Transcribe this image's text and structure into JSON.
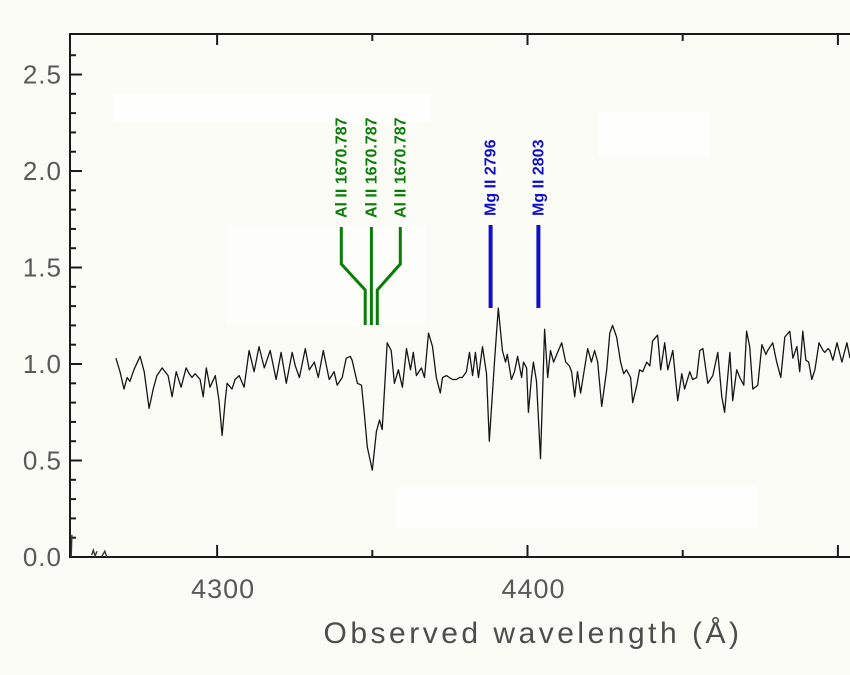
{
  "figure": {
    "kind": "astronomical spectrum plot",
    "background_color": "#fcfcf6",
    "axis_color": "#1a1a1a",
    "tick_label_color": "#595959",
    "title_color": "#4d4d4d"
  },
  "chart_data": {
    "type": "line",
    "title": "",
    "xlabel": "Observed wavelength (Å)",
    "ylabel": "",
    "xlim": [
      4252.6,
      4503.9
    ],
    "ylim": [
      0,
      2.71
    ],
    "grid": false,
    "x_major_ticks": [
      4300,
      4400,
      4500
    ],
    "x_major_labels": [
      "4300",
      "4400",
      ""
    ],
    "x_minor_ticks": [
      4350,
      4450
    ],
    "y_major_ticks": [
      0.0,
      0.5,
      1.0,
      1.5,
      2.0,
      2.5
    ],
    "y_major_labels": [
      "0.0",
      "0.5",
      "1.0",
      "1.5",
      "2.0",
      "2.5"
    ],
    "y_minor_step": 0.1,
    "line_color": "#161616",
    "annotations": [
      {
        "label": "Al II 1670.787",
        "color": "#0a7c0a",
        "label_wavelength": 4340.0,
        "line_wavelength": 4347.7,
        "style": "funnel"
      },
      {
        "label": "Al II 1670.787",
        "color": "#0a7c0a",
        "label_wavelength": 4349.7,
        "line_wavelength": 4349.7,
        "style": "funnel"
      },
      {
        "label": "Al II 1670.787",
        "color": "#0a7c0a",
        "label_wavelength": 4359.0,
        "line_wavelength": 4351.6,
        "style": "funnel"
      },
      {
        "label": "Mg II 2796",
        "color": "#1010c8",
        "label_wavelength": 4388.1,
        "line_wavelength": 4388.1,
        "style": "bar"
      },
      {
        "label": "Mg II 2803",
        "color": "#1010c8",
        "label_wavelength": 4403.5,
        "line_wavelength": 4403.5,
        "style": "bar"
      }
    ],
    "artifact_segments": [
      {
        "points": [
          [
            4253.0,
            0.0
          ],
          [
            4253.2,
            0.115
          ]
        ]
      },
      {
        "points": [
          [
            4259.6,
            0.01
          ],
          [
            4260.1,
            0.035
          ],
          [
            4260.7,
            0.005
          ],
          [
            4261.3,
            0.03
          ]
        ]
      },
      {
        "points": [
          [
            4262.9,
            0.005
          ],
          [
            4263.8,
            0.03
          ],
          [
            4264.5,
            0.0
          ]
        ]
      }
    ],
    "series": [
      {
        "name": "spectrum",
        "points": [
          [
            4267.4,
            1.03
          ],
          [
            4268.7,
            0.96
          ],
          [
            4270.0,
            0.87
          ],
          [
            4271.0,
            0.93
          ],
          [
            4271.9,
            0.91
          ],
          [
            4273.2,
            0.97
          ],
          [
            4275.2,
            1.04
          ],
          [
            4276.5,
            0.96
          ],
          [
            4278.1,
            0.77
          ],
          [
            4279.4,
            0.87
          ],
          [
            4280.6,
            0.94
          ],
          [
            4282.3,
            0.98
          ],
          [
            4283.2,
            0.96
          ],
          [
            4284.2,
            0.94
          ],
          [
            4285.5,
            0.83
          ],
          [
            4286.8,
            0.96
          ],
          [
            4288.4,
            0.88
          ],
          [
            4290.0,
            0.98
          ],
          [
            4291.0,
            0.95
          ],
          [
            4291.9,
            0.93
          ],
          [
            4292.9,
            0.95
          ],
          [
            4294.5,
            0.92
          ],
          [
            4295.5,
            0.83
          ],
          [
            4296.5,
            0.98
          ],
          [
            4297.7,
            0.88
          ],
          [
            4299.4,
            0.94
          ],
          [
            4300.6,
            0.81
          ],
          [
            4301.6,
            0.63
          ],
          [
            4302.6,
            0.81
          ],
          [
            4303.2,
            0.9
          ],
          [
            4304.8,
            0.87
          ],
          [
            4305.8,
            0.92
          ],
          [
            4307.1,
            0.94
          ],
          [
            4308.7,
            0.88
          ],
          [
            4310.3,
            1.07
          ],
          [
            4311.9,
            0.96
          ],
          [
            4313.5,
            1.09
          ],
          [
            4315.2,
            0.98
          ],
          [
            4317.1,
            1.07
          ],
          [
            4319.0,
            0.92
          ],
          [
            4320.6,
            1.06
          ],
          [
            4322.3,
            0.9
          ],
          [
            4324.2,
            1.06
          ],
          [
            4325.2,
            0.99
          ],
          [
            4326.5,
            0.93
          ],
          [
            4328.4,
            1.08
          ],
          [
            4329.7,
            0.97
          ],
          [
            4331.3,
            1.01
          ],
          [
            4332.6,
            0.93
          ],
          [
            4334.2,
            1.07
          ],
          [
            4336.1,
            0.92
          ],
          [
            4337.7,
            0.96
          ],
          [
            4338.7,
            0.89
          ],
          [
            4340.3,
            0.93
          ],
          [
            4341.6,
            1.03
          ],
          [
            4342.9,
            1.04
          ],
          [
            4343.5,
            1.02
          ],
          [
            4345.2,
            0.9
          ],
          [
            4346.5,
            0.89
          ],
          [
            4347.4,
            0.75
          ],
          [
            4348.4,
            0.57
          ],
          [
            4350.0,
            0.45
          ],
          [
            4351.3,
            0.65
          ],
          [
            4352.3,
            0.71
          ],
          [
            4353.2,
            0.66
          ],
          [
            4354.8,
            1.11
          ],
          [
            4356.1,
            1.07
          ],
          [
            4357.1,
            0.9
          ],
          [
            4358.4,
            0.97
          ],
          [
            4359.7,
            0.88
          ],
          [
            4361.0,
            1.08
          ],
          [
            4362.3,
            0.97
          ],
          [
            4363.2,
            1.06
          ],
          [
            4364.2,
            0.94
          ],
          [
            4365.8,
            0.98
          ],
          [
            4366.8,
            0.93
          ],
          [
            4368.1,
            1.16
          ],
          [
            4369.4,
            1.09
          ],
          [
            4370.6,
            0.93
          ],
          [
            4371.9,
            0.85
          ],
          [
            4372.6,
            0.93
          ],
          [
            4373.9,
            0.94
          ],
          [
            4374.8,
            0.93
          ],
          [
            4375.8,
            0.92
          ],
          [
            4377.1,
            0.92
          ],
          [
            4378.1,
            0.93
          ],
          [
            4379.0,
            0.93
          ],
          [
            4380.3,
            0.96
          ],
          [
            4381.3,
            1.06
          ],
          [
            4382.3,
            0.94
          ],
          [
            4383.2,
            1.06
          ],
          [
            4384.2,
            0.93
          ],
          [
            4385.5,
            1.09
          ],
          [
            4386.8,
            0.95
          ],
          [
            4387.7,
            0.6
          ],
          [
            4389.4,
            1.02
          ],
          [
            4390.6,
            1.29
          ],
          [
            4391.9,
            1.07
          ],
          [
            4392.9,
            1.01
          ],
          [
            4393.5,
            1.05
          ],
          [
            4394.8,
            0.92
          ],
          [
            4395.8,
            0.96
          ],
          [
            4396.8,
            1.04
          ],
          [
            4398.1,
            0.93
          ],
          [
            4398.7,
            1.01
          ],
          [
            4399.7,
            0.98
          ],
          [
            4400.3,
            0.75
          ],
          [
            4401.3,
            0.93
          ],
          [
            4401.9,
            1.01
          ],
          [
            4402.9,
            0.91
          ],
          [
            4404.2,
            0.51
          ],
          [
            4405.5,
            1.18
          ],
          [
            4406.5,
            0.93
          ],
          [
            4407.4,
            1.07
          ],
          [
            4408.4,
            1.01
          ],
          [
            4409.7,
            1.06
          ],
          [
            4411.0,
            1.11
          ],
          [
            4412.3,
            1.01
          ],
          [
            4413.5,
            0.99
          ],
          [
            4414.2,
            0.96
          ],
          [
            4415.2,
            0.83
          ],
          [
            4416.1,
            0.96
          ],
          [
            4417.1,
            0.85
          ],
          [
            4418.1,
            0.95
          ],
          [
            4419.4,
            1.08
          ],
          [
            4420.6,
            1.01
          ],
          [
            4421.6,
            1.07
          ],
          [
            4422.6,
            1.01
          ],
          [
            4423.9,
            0.78
          ],
          [
            4425.5,
            0.97
          ],
          [
            4426.5,
            1.16
          ],
          [
            4427.4,
            1.2
          ],
          [
            4428.7,
            1.14
          ],
          [
            4430.0,
            1.01
          ],
          [
            4431.0,
            0.95
          ],
          [
            4431.9,
            0.97
          ],
          [
            4433.2,
            0.93
          ],
          [
            4433.9,
            0.8
          ],
          [
            4435.2,
            0.89
          ],
          [
            4436.1,
            0.97
          ],
          [
            4437.1,
            0.96
          ],
          [
            4438.4,
            1.01
          ],
          [
            4439.4,
            0.99
          ],
          [
            4440.3,
            1.12
          ],
          [
            4441.9,
            1.15
          ],
          [
            4442.9,
            0.97
          ],
          [
            4444.2,
            1.11
          ],
          [
            4445.2,
            0.97
          ],
          [
            4446.8,
            1.07
          ],
          [
            4448.4,
            0.81
          ],
          [
            4449.7,
            0.95
          ],
          [
            4450.6,
            0.87
          ],
          [
            4452.3,
            0.96
          ],
          [
            4453.2,
            0.92
          ],
          [
            4454.5,
            0.93
          ],
          [
            4455.5,
            1.07
          ],
          [
            4456.5,
            1.08
          ],
          [
            4458.1,
            0.9
          ],
          [
            4459.7,
            0.94
          ],
          [
            4461.3,
            1.06
          ],
          [
            4462.6,
            0.83
          ],
          [
            4463.5,
            0.75
          ],
          [
            4465.2,
            1.06
          ],
          [
            4466.1,
            0.81
          ],
          [
            4467.4,
            0.97
          ],
          [
            4468.4,
            0.93
          ],
          [
            4469.7,
            0.89
          ],
          [
            4470.6,
            1.17
          ],
          [
            4471.6,
            1.09
          ],
          [
            4472.6,
            0.87
          ],
          [
            4474.2,
            0.89
          ],
          [
            4475.5,
            1.1
          ],
          [
            4476.8,
            1.05
          ],
          [
            4477.4,
            1.07
          ],
          [
            4479.0,
            1.11
          ],
          [
            4480.3,
            1.01
          ],
          [
            4481.6,
            0.93
          ],
          [
            4482.9,
            1.14
          ],
          [
            4484.5,
            1.17
          ],
          [
            4485.5,
            1.03
          ],
          [
            4486.8,
            1.09
          ],
          [
            4487.7,
            0.96
          ],
          [
            4488.7,
            1.17
          ],
          [
            4489.7,
            1.02
          ],
          [
            4490.6,
            1.01
          ],
          [
            4491.6,
            0.92
          ],
          [
            4492.6,
            0.97
          ],
          [
            4493.9,
            1.11
          ],
          [
            4495.2,
            1.07
          ],
          [
            4495.8,
            1.06
          ],
          [
            4496.8,
            1.08
          ],
          [
            4497.4,
            1.07
          ],
          [
            4498.4,
            1.02
          ],
          [
            4499.7,
            1.11
          ],
          [
            4501.3,
            1.01
          ],
          [
            4502.9,
            1.11
          ],
          [
            4503.9,
            1.03
          ]
        ]
      }
    ]
  }
}
